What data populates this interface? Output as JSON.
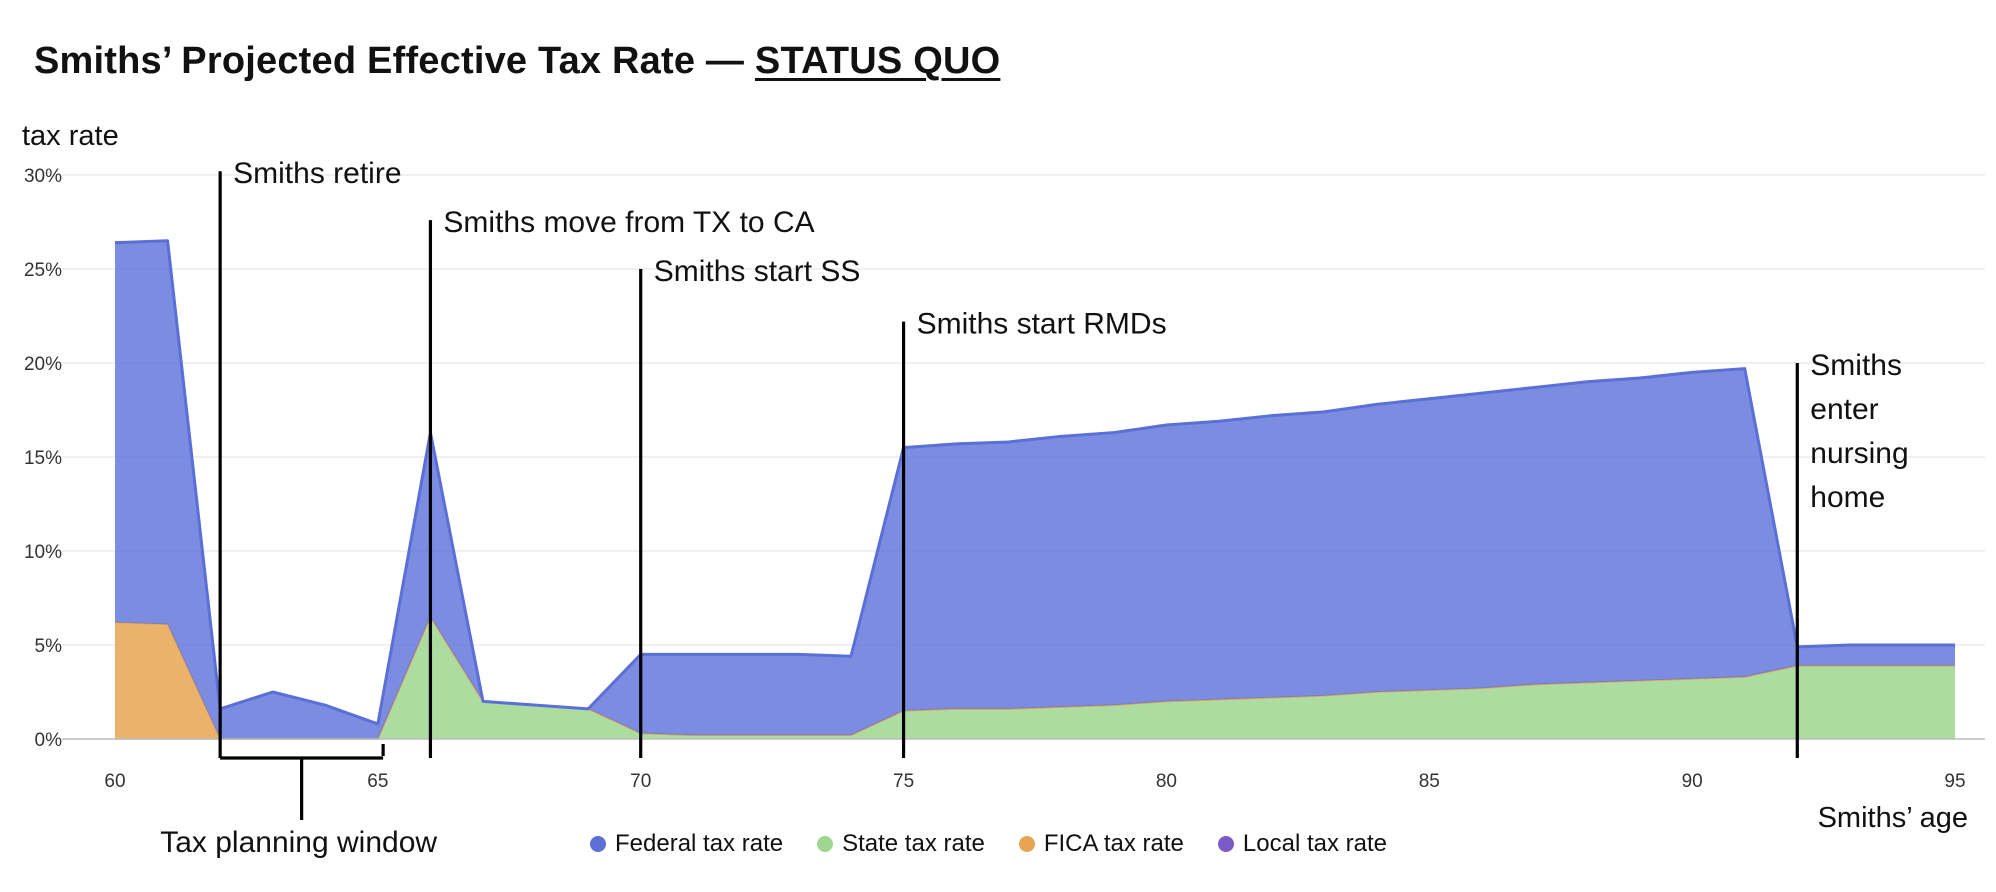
{
  "header": {
    "title_prefix": "Smiths’ Projected Effective Tax Rate — ",
    "title_emphasis": "STATUS QUO"
  },
  "colors": {
    "federal": "#5b6fd8",
    "state": "#9dd68e",
    "fica": "#e8a452",
    "local": "#7a5cc6",
    "grid": "#e6e6e6",
    "axis": "#bbbbbb"
  },
  "chart_data": {
    "type": "area",
    "title": "Smiths’ Projected Effective Tax Rate — STATUS QUO",
    "xlabel": "Smiths’ age",
    "ylabel": "tax rate",
    "xlim": [
      60,
      95
    ],
    "ylim": [
      0,
      30
    ],
    "x_ticks": [
      60,
      65,
      70,
      75,
      80,
      85,
      90,
      95
    ],
    "y_ticks": [
      "0%",
      "5%",
      "10%",
      "15%",
      "20%",
      "25%",
      "30%"
    ],
    "grid": true,
    "legend_position": "bottom",
    "x": [
      60,
      61,
      62,
      63,
      64,
      65,
      66,
      67,
      68,
      69,
      70,
      71,
      72,
      73,
      74,
      75,
      76,
      77,
      78,
      79,
      80,
      81,
      82,
      83,
      84,
      85,
      86,
      87,
      88,
      89,
      90,
      91,
      92,
      93,
      94,
      95
    ],
    "total": [
      26.4,
      26.5,
      1.6,
      2.5,
      1.8,
      0.8,
      16.3,
      2.0,
      1.8,
      1.6,
      4.5,
      4.5,
      4.5,
      4.5,
      4.4,
      15.5,
      15.7,
      15.8,
      16.1,
      16.3,
      16.7,
      16.9,
      17.2,
      17.4,
      17.8,
      18.1,
      18.4,
      18.7,
      19.0,
      19.2,
      19.5,
      19.7,
      4.9,
      5.0,
      5.0,
      5.0
    ],
    "series": [
      {
        "name": "Federal tax rate",
        "key": "federal",
        "values": [
          20.2,
          20.4,
          1.6,
          2.5,
          1.8,
          0.8,
          9.8,
          0.0,
          0.0,
          0.0,
          4.2,
          4.3,
          4.3,
          4.3,
          4.2,
          14.0,
          14.1,
          14.2,
          14.4,
          14.5,
          14.7,
          14.8,
          15.0,
          15.1,
          15.3,
          15.5,
          15.7,
          15.8,
          16.0,
          16.1,
          16.3,
          16.4,
          1.0,
          1.1,
          1.1,
          1.1
        ]
      },
      {
        "name": "State tax rate",
        "key": "state",
        "values": [
          0.0,
          0.0,
          0.0,
          0.0,
          0.0,
          0.0,
          6.5,
          2.0,
          1.8,
          1.6,
          0.3,
          0.2,
          0.2,
          0.2,
          0.2,
          1.5,
          1.6,
          1.6,
          1.7,
          1.8,
          2.0,
          2.1,
          2.2,
          2.3,
          2.5,
          2.6,
          2.7,
          2.9,
          3.0,
          3.1,
          3.2,
          3.3,
          3.9,
          3.9,
          3.9,
          3.9
        ]
      },
      {
        "name": "FICA tax rate",
        "key": "fica",
        "values": [
          6.2,
          6.1,
          0,
          0,
          0,
          0,
          0,
          0,
          0,
          0,
          0,
          0,
          0,
          0,
          0,
          0,
          0,
          0,
          0,
          0,
          0,
          0,
          0,
          0,
          0,
          0,
          0,
          0,
          0,
          0,
          0,
          0,
          0,
          0,
          0,
          0
        ]
      },
      {
        "name": "Local tax rate",
        "key": "local",
        "values": [
          0,
          0,
          0,
          0,
          0,
          0,
          0,
          0,
          0,
          0,
          0,
          0,
          0,
          0,
          0,
          0,
          0,
          0,
          0,
          0,
          0,
          0,
          0,
          0,
          0,
          0,
          0,
          0,
          0,
          0,
          0,
          0,
          0,
          0,
          0,
          0
        ]
      }
    ],
    "annotations": [
      {
        "age": 62.0,
        "top": 30.2,
        "lines": [
          "Smiths retire"
        ]
      },
      {
        "age": 66.0,
        "top": 27.6,
        "lines": [
          "Smiths move from TX to CA"
        ]
      },
      {
        "age": 70.0,
        "top": 25.0,
        "lines": [
          "Smiths start SS"
        ]
      },
      {
        "age": 75.0,
        "top": 22.2,
        "lines": [
          "Smiths start RMDs"
        ]
      },
      {
        "age": 92.0,
        "top": 20.0,
        "lines": [
          "Smiths",
          "enter",
          "nursing",
          "home"
        ]
      }
    ],
    "bracket": {
      "from": 62.0,
      "to": 65.1,
      "label": "Tax planning window"
    }
  }
}
